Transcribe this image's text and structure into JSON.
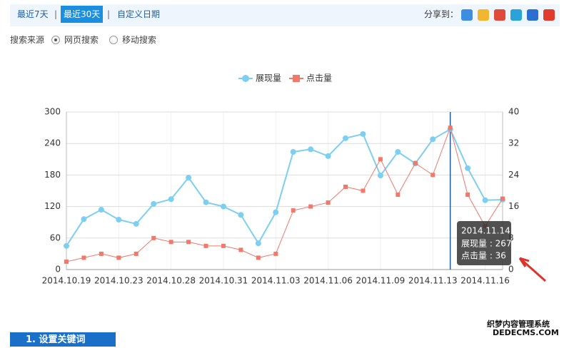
{
  "tabs": [
    "最近7天",
    "最近30天",
    "自定义日期"
  ],
  "share_label": "分享到：",
  "source": {
    "label": "搜索来源",
    "options": [
      "网页搜索",
      "移动搜索"
    ]
  },
  "button": "1. 设置关键词",
  "watermark": {
    "line1": "织梦内容管理系统",
    "line2": "DEDECMS.COM"
  },
  "tooltip": {
    "date": "2014.11.14",
    "rows": [
      "展现量 : 267",
      "点击量 : 36"
    ]
  },
  "chart_data": {
    "type": "line",
    "categories": [
      "2014.10.19",
      null,
      null,
      "2014.10.23",
      null,
      null,
      "2014.10.28",
      null,
      null,
      "2014.10.31",
      null,
      null,
      "2014.11.03",
      null,
      null,
      "2014.11.06",
      null,
      null,
      "2014.11.09",
      null,
      null,
      "2014.11.13",
      null,
      null,
      "2014.11.16",
      null
    ],
    "series": [
      {
        "name": "展现量",
        "color": "#7dcff2",
        "values": [
          45,
          96,
          114,
          95,
          87,
          125,
          134,
          175,
          128,
          120,
          104,
          50,
          109,
          224,
          229,
          216,
          250,
          258,
          179,
          224,
          202,
          248,
          267,
          193,
          132,
          133
        ]
      },
      {
        "name": "点击量",
        "color": "#f0796b",
        "axis": "y2",
        "values": [
          2,
          3,
          4,
          3,
          4,
          8,
          7,
          7,
          6,
          6,
          5,
          3,
          4,
          15,
          16,
          17,
          21,
          20,
          28,
          19,
          27,
          24,
          36,
          19,
          11,
          18
        ]
      }
    ],
    "ylim": [
      0,
      300
    ],
    "yticks": [
      0,
      60,
      120,
      180,
      240,
      300
    ],
    "y2lim": [
      0,
      40
    ],
    "y2ticks": [
      0,
      8,
      16,
      24,
      32,
      40
    ],
    "grid": true
  }
}
